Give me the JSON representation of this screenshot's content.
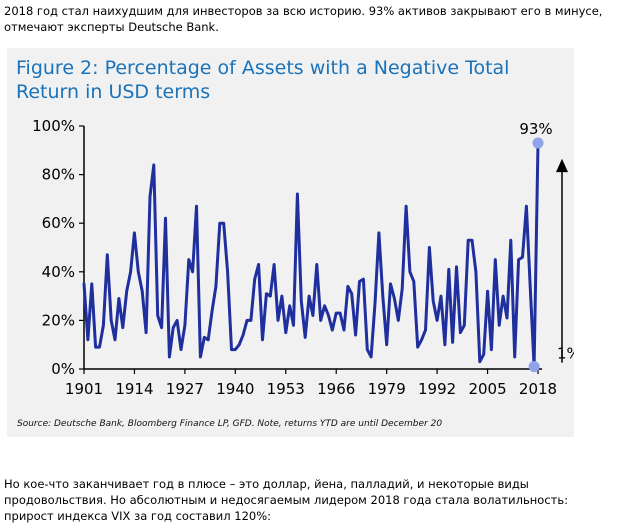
{
  "intro_text": "2018 год стал наихудшим для инвесторов за всю историю. 93% активов закрывают его в минусе, отмечают эксперты Deutsche Bank.",
  "outro_text": "Но кое-что заканчивает год в плюсе – это доллар, йена, палладий, и некоторые виды продовольствия. Но абсолютным и недосягаемым лидером 2018 года стала волатильность: прирост индекса VIX за год составил 120%:",
  "chart_data": {
    "type": "line",
    "title": "Figure 2: Percentage of Assets with a Negative Total Return in USD terms",
    "source": "Source: Deutsche Bank, Bloomberg Finance LP, GFD. Note, returns YTD are until December 20",
    "xlabel": "",
    "ylabel": "",
    "xlim": [
      1901,
      2018
    ],
    "ylim": [
      0,
      100
    ],
    "x_ticks": [
      "1901",
      "1914",
      "1927",
      "1940",
      "1953",
      "1966",
      "1979",
      "1992",
      "2005",
      "2018"
    ],
    "y_ticks": [
      "0%",
      "20%",
      "40%",
      "60%",
      "80%",
      "100%"
    ],
    "annotations": {
      "high_label": "93%",
      "low_label": "1%",
      "high_value": 93,
      "low_value": 1
    },
    "colors": {
      "line": "#1f2f9e",
      "marker": "#8ea3e8",
      "title": "#1a73ba",
      "background": "#f1f1f1"
    },
    "series": [
      {
        "x": [
          1901,
          1902,
          1903,
          1904,
          1905,
          1906,
          1907,
          1908,
          1909,
          1910,
          1911,
          1912,
          1913,
          1914,
          1915,
          1916,
          1917,
          1918,
          1919,
          1920,
          1921,
          1922,
          1923,
          1924,
          1925,
          1926,
          1927,
          1928,
          1929,
          1930,
          1931,
          1932,
          1933,
          1934,
          1935,
          1936,
          1937,
          1938,
          1939,
          1940,
          1941,
          1942,
          1943,
          1944,
          1945,
          1946,
          1947,
          1948,
          1949,
          1950,
          1951,
          1952,
          1953,
          1954,
          1955,
          1956,
          1957,
          1958,
          1959,
          1960,
          1961,
          1962,
          1963,
          1964,
          1965,
          1966,
          1967,
          1968,
          1969,
          1970,
          1971,
          1972,
          1973,
          1974,
          1975,
          1976,
          1977,
          1978,
          1979,
          1980,
          1981,
          1982,
          1983,
          1984,
          1985,
          1986,
          1987,
          1988,
          1989,
          1990,
          1991,
          1992,
          1993,
          1994,
          1995,
          1996,
          1997,
          1998,
          1999,
          2000,
          2001,
          2002,
          2003,
          2004,
          2005,
          2006,
          2007,
          2008,
          2009,
          2010,
          2011,
          2012,
          2013,
          2014,
          2015,
          2016,
          2017,
          2018
        ],
        "values": [
          35,
          12,
          35,
          9,
          9,
          18,
          47,
          20,
          12,
          29,
          17,
          32,
          40,
          56,
          40,
          32,
          15,
          71,
          84,
          22,
          17,
          62,
          5,
          17,
          20,
          8,
          18,
          45,
          40,
          67,
          5,
          13,
          12,
          24,
          34,
          60,
          60,
          40,
          8,
          8,
          10,
          14,
          20,
          20,
          37,
          43,
          12,
          31,
          30,
          43,
          20,
          30,
          15,
          26,
          18,
          72,
          28,
          13,
          30,
          22,
          43,
          20,
          26,
          22,
          16,
          23,
          23,
          16,
          34,
          31,
          14,
          36,
          37,
          8,
          5,
          27,
          56,
          30,
          10,
          35,
          29,
          20,
          33,
          67,
          40,
          36,
          9,
          12,
          16,
          50,
          28,
          20,
          30,
          10,
          41,
          11,
          42,
          15,
          18,
          53,
          53,
          40,
          3,
          6,
          32,
          8,
          45,
          18,
          30,
          21,
          53,
          5,
          45,
          46,
          67,
          34,
          1,
          93
        ]
      }
    ]
  }
}
